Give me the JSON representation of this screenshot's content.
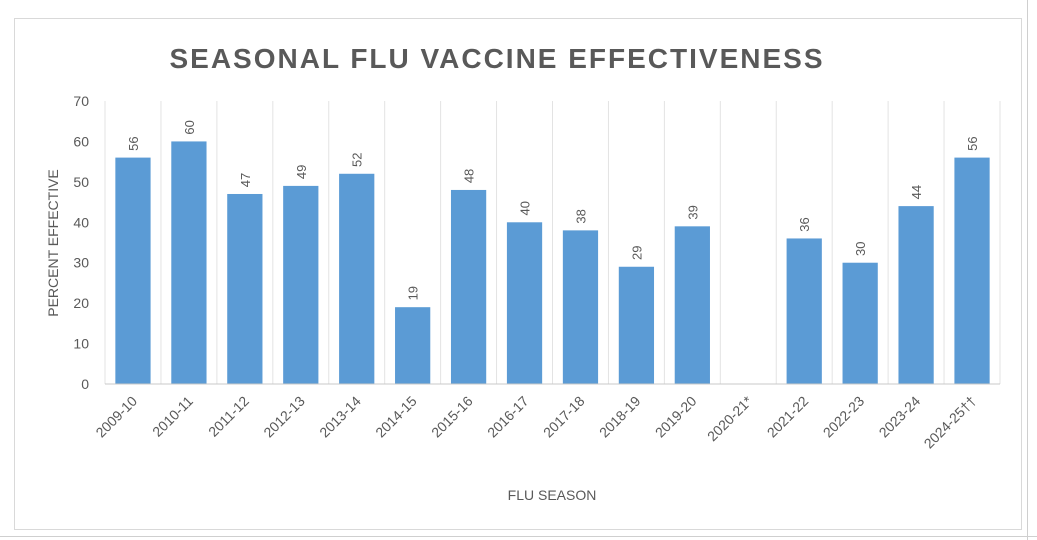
{
  "chart_data": {
    "type": "bar",
    "title": "SEASONAL FLU VACCINE EFFECTIVENESS",
    "xlabel": "FLU SEASON",
    "ylabel": "PERCENT EFFECTIVE",
    "ylim": [
      0,
      70
    ],
    "yticks": [
      0,
      10,
      20,
      30,
      40,
      50,
      60,
      70
    ],
    "grid": "vertical",
    "bar_color": "#5b9bd5",
    "categories": [
      "2009-10",
      "2010-11",
      "2011-12",
      "2012-13",
      "2013-14",
      "2014-15",
      "2015-16",
      "2016-17",
      "2017-18",
      "2018-19",
      "2019-20",
      "2020-21*",
      "2021-22",
      "2022-23",
      "2023-24",
      "2024-25††"
    ],
    "values": [
      56,
      60,
      47,
      49,
      52,
      19,
      48,
      40,
      38,
      29,
      39,
      null,
      36,
      30,
      44,
      56
    ]
  }
}
